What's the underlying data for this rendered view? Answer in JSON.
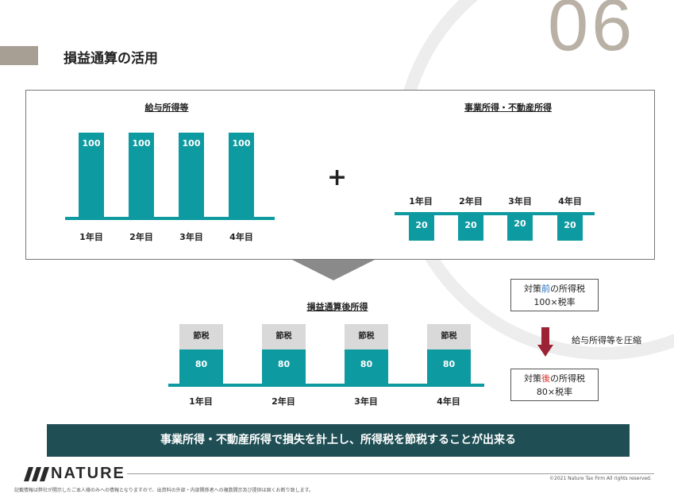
{
  "slide_number": "06",
  "title": "損益通算の活用",
  "salary": {
    "title": "給与所得等",
    "bars": [
      "100",
      "100",
      "100",
      "100"
    ],
    "years": [
      "1年目",
      "2年目",
      "3年目",
      "4年目"
    ]
  },
  "plus": "+",
  "business": {
    "title": "事業所得・不動産所得",
    "years": [
      "1年目",
      "2年目",
      "3年目",
      "4年目"
    ],
    "bars": [
      "20",
      "20",
      "20",
      "20"
    ]
  },
  "after": {
    "title": "損益通算後所得",
    "tax_saving": [
      "節税",
      "節税",
      "節税",
      "節税"
    ],
    "bars": [
      "80",
      "80",
      "80",
      "80"
    ],
    "years": [
      "1年目",
      "2年目",
      "3年目",
      "4年目"
    ]
  },
  "before_box": {
    "pre": "対策",
    "accent": "前",
    "post": "の所得税",
    "formula": "100×税率"
  },
  "after_box": {
    "pre": "対策",
    "accent": "後",
    "post": "の所得税",
    "formula": "80×税率"
  },
  "compress_label": "給与所得等を圧縮",
  "banner": "事業所得・不動産所得で損失を計上し、所得税を節税することが出来る",
  "logo_text": "NATURE",
  "copyright": "©2021 Nature Tax Firm All rights reserved.",
  "disclaimer": "記載情報は弊社が開示したご本人様のみへの情報となりますので、出資料の外部・内部関係者への複数開示及び提供は固くお断り致します。",
  "colors": {
    "teal": "#0d9aa0",
    "banner": "#1f4f55",
    "accent_red": "#e0312b",
    "arrow": "#9b2335"
  }
}
